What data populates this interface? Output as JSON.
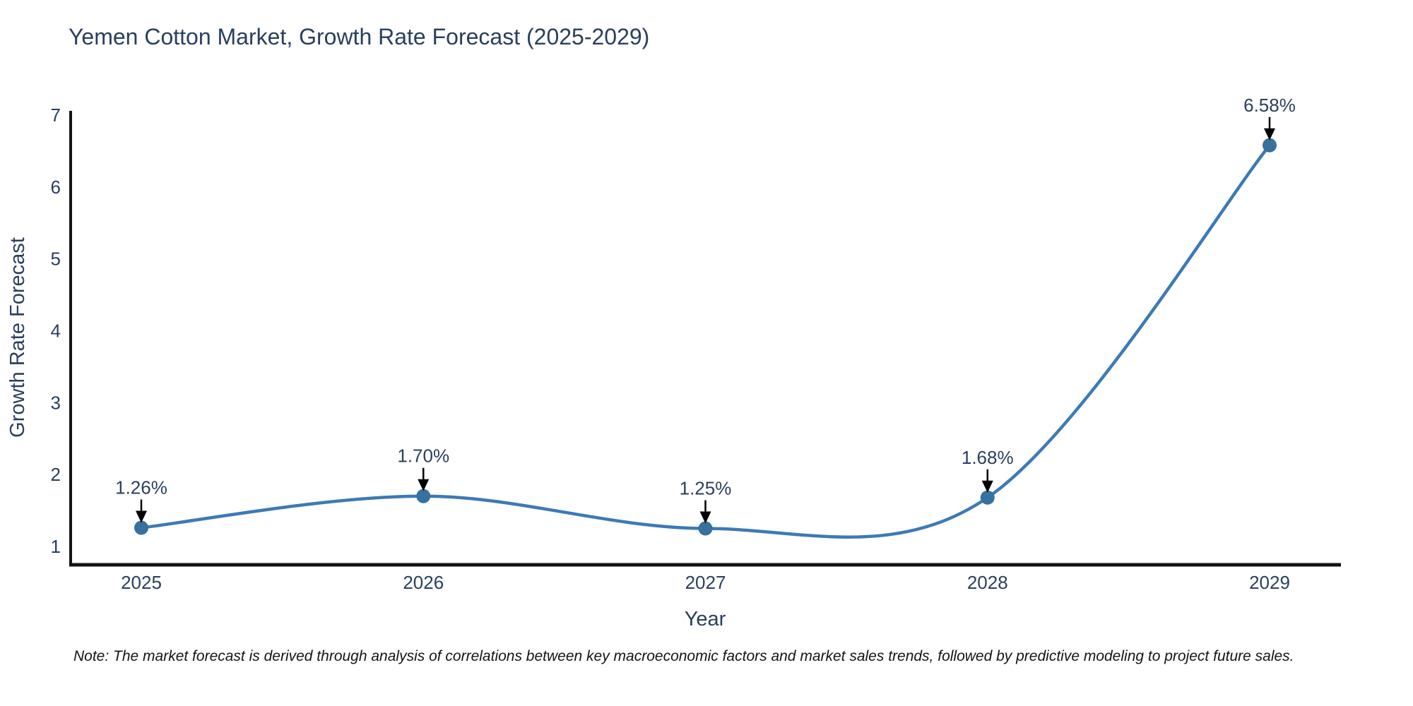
{
  "title": "Yemen Cotton Market, Growth Rate Forecast (2025-2029)",
  "note": "Note: The market forecast is derived through analysis of correlations between key macroeconomic factors and market sales trends, followed by predictive modeling to project future sales.",
  "chart_data": {
    "type": "line",
    "title": "Yemen Cotton Market, Growth Rate Forecast (2025-2029)",
    "x": [
      "2025",
      "2026",
      "2027",
      "2028",
      "2029"
    ],
    "series": [
      {
        "name": "Growth Rate Forecast",
        "values": [
          1.26,
          1.7,
          1.25,
          1.68,
          6.58
        ],
        "point_labels": [
          "1.26%",
          "1.70%",
          "1.25%",
          "1.68%",
          "6.58%"
        ]
      }
    ],
    "xlabel": "Year",
    "ylabel": "Growth Rate Forecast",
    "yticks": [
      1,
      2,
      3,
      4,
      5,
      6,
      7
    ],
    "ylim": [
      0.75,
      7.05
    ],
    "grid": false,
    "legend": false,
    "smooth_spline": true,
    "annotation_arrows": true,
    "colors": {
      "line": "#3d7ab5",
      "marker": "#37719e",
      "axis": "#141414",
      "text": "#2a3f5f",
      "arrow": "#000000",
      "background": "#ffffff"
    }
  }
}
